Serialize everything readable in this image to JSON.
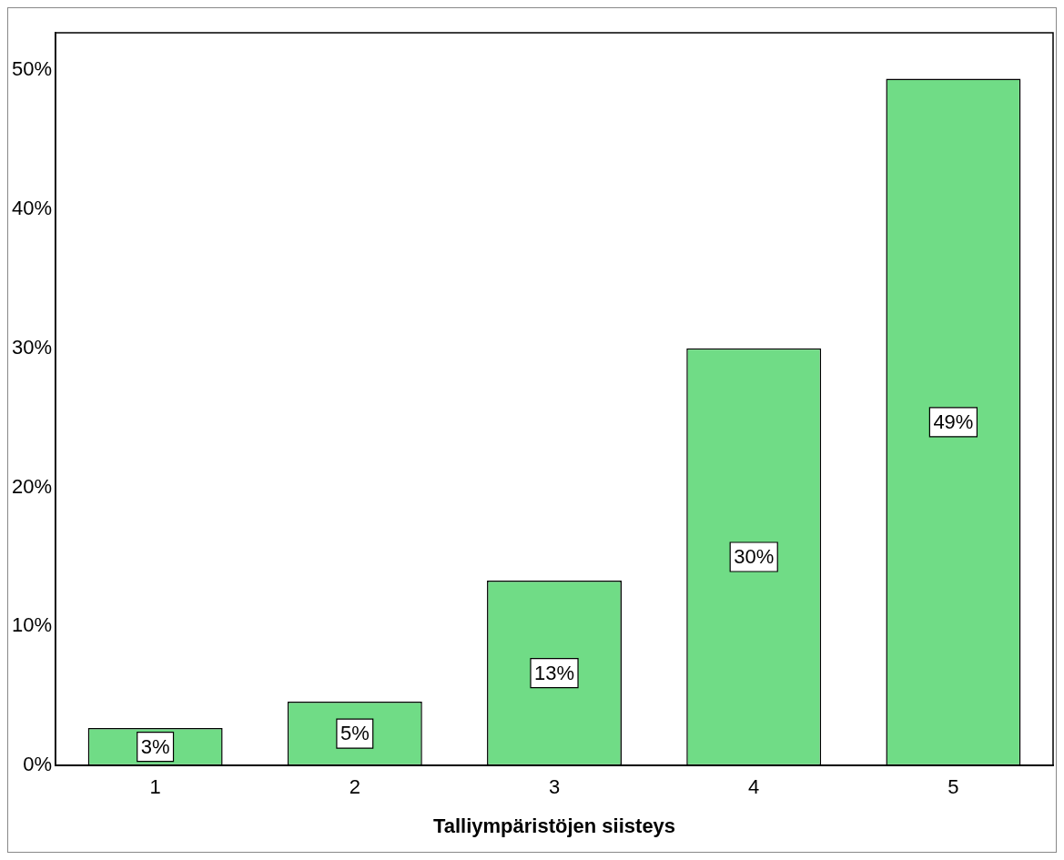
{
  "chart_data": {
    "type": "bar",
    "xlabel": "Talliympäristöjen siisteys",
    "categories": [
      "1",
      "2",
      "3",
      "4",
      "5"
    ],
    "values": [
      2.7,
      4.6,
      13.3,
      30.0,
      49.4
    ],
    "value_labels": [
      "3%",
      "5%",
      "13%",
      "30%",
      "49%"
    ],
    "color": "#70dc86",
    "ylim": [
      0,
      52.7
    ],
    "yticks": [
      {
        "value": 0,
        "label": "0%"
      },
      {
        "value": 10,
        "label": "10%"
      },
      {
        "value": 20,
        "label": "20%"
      },
      {
        "value": 30,
        "label": "30%"
      },
      {
        "value": 40,
        "label": "40%"
      },
      {
        "value": 50,
        "label": "50%"
      }
    ]
  }
}
